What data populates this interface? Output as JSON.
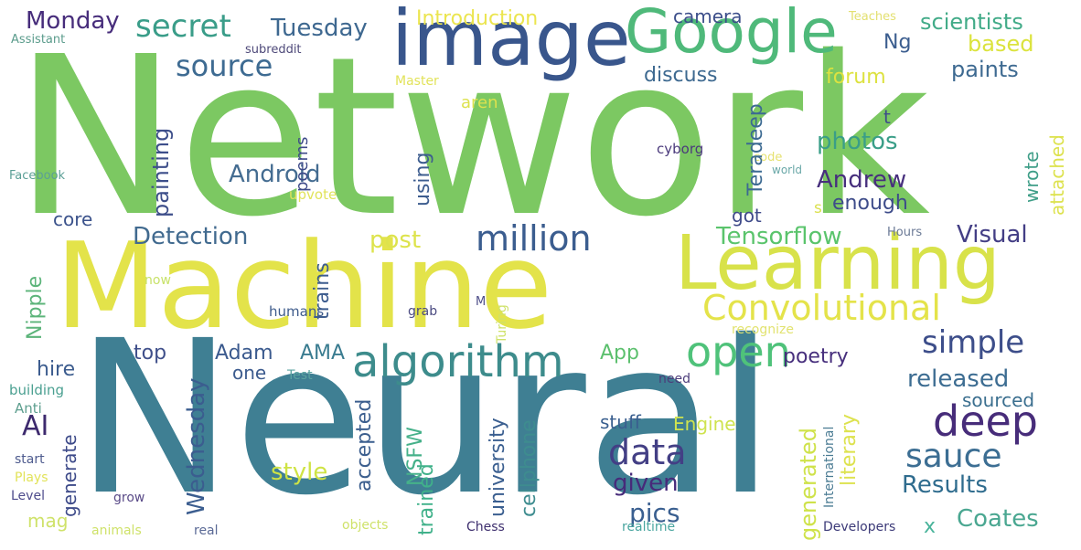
{
  "words": [
    {
      "text": "Network",
      "color": "#7cc862"
    },
    {
      "text": "Neural",
      "color": "#3f7f93"
    },
    {
      "text": "Machine",
      "color": "#e3e34a"
    },
    {
      "text": "Learning",
      "color": "#d8e24a"
    },
    {
      "text": "image",
      "color": "#39568c"
    },
    {
      "text": "Google",
      "color": "#4fb97a"
    },
    {
      "text": "algorithm",
      "color": "#3d8c8c"
    },
    {
      "text": "open",
      "color": "#4fc27a"
    },
    {
      "text": "deep",
      "color": "#472c7a"
    },
    {
      "text": "million",
      "color": "#3b5d8f"
    },
    {
      "text": "Convolutional",
      "color": "#e4e34a"
    },
    {
      "text": "data",
      "color": "#433f85"
    },
    {
      "text": "sauce",
      "color": "#3c6e93"
    },
    {
      "text": "simple",
      "color": "#3d4e8a"
    },
    {
      "text": "secret",
      "color": "#3a9d89"
    },
    {
      "text": "source",
      "color": "#3e6b92"
    },
    {
      "text": "Tensorflow",
      "color": "#5ac46c"
    },
    {
      "text": "Detection",
      "color": "#416a8f"
    },
    {
      "text": "Monday",
      "color": "#472d7b"
    },
    {
      "text": "Tuesday",
      "color": "#3e6890"
    },
    {
      "text": "Android",
      "color": "#446c91"
    },
    {
      "text": "photos",
      "color": "#3a9e88"
    },
    {
      "text": "Andrew",
      "color": "#472f7d"
    },
    {
      "text": "Visual",
      "color": "#433e85"
    },
    {
      "text": "released",
      "color": "#3d6d92"
    },
    {
      "text": "Results",
      "color": "#2f6c8e"
    },
    {
      "text": "Coates",
      "color": "#4aa791"
    },
    {
      "text": "pics",
      "color": "#3a5f90"
    },
    {
      "text": "given",
      "color": "#472a7a"
    },
    {
      "text": "style",
      "color": "#cfe344"
    },
    {
      "text": "scientists",
      "color": "#42ab88"
    },
    {
      "text": "based",
      "color": "#dbe33d"
    },
    {
      "text": "paints",
      "color": "#3e6a91"
    },
    {
      "text": "forum",
      "color": "#dde240"
    },
    {
      "text": "discuss",
      "color": "#3d6990"
    },
    {
      "text": "camera",
      "color": "#3c4e8a"
    },
    {
      "text": "Introduction",
      "color": "#ebe54f"
    },
    {
      "text": "Ng",
      "color": "#3c5e8f"
    },
    {
      "text": "enough",
      "color": "#3e4c8a"
    },
    {
      "text": "got",
      "color": "#3e4a89"
    },
    {
      "text": "post",
      "color": "#dde34c"
    },
    {
      "text": "core",
      "color": "#3b528b"
    },
    {
      "text": "top",
      "color": "#3f4f8a"
    },
    {
      "text": "Adam",
      "color": "#3b5a8e"
    },
    {
      "text": "AMA",
      "color": "#3a7c90"
    },
    {
      "text": "App",
      "color": "#5cc06e"
    },
    {
      "text": "one",
      "color": "#3c5b8e"
    },
    {
      "text": "poetry",
      "color": "#472f7d"
    },
    {
      "text": "hire",
      "color": "#3c5c8e"
    },
    {
      "text": "AI",
      "color": "#3d2a6e"
    },
    {
      "text": "sourced",
      "color": "#3b6f8f"
    },
    {
      "text": "stuff",
      "color": "#3a5f8f"
    },
    {
      "text": "Engine",
      "color": "#cfe34f"
    },
    {
      "text": "mag",
      "color": "#cfe26a"
    },
    {
      "text": "x",
      "color": "#4ab49b"
    },
    {
      "text": "aren",
      "color": "#dde24e"
    },
    {
      "text": "Master",
      "color": "#e2e35a"
    },
    {
      "text": "Teaches",
      "color": "#e3e070"
    },
    {
      "text": "Assistant",
      "color": "#5b9c8c"
    },
    {
      "text": "subreddit",
      "color": "#4f4a7a"
    },
    {
      "text": "Facebook",
      "color": "#5b9f96"
    },
    {
      "text": "cyborg",
      "color": "#4b3a7c"
    },
    {
      "text": "code",
      "color": "#e6e270"
    },
    {
      "text": "world",
      "color": "#6aa8a8"
    },
    {
      "text": "upvote",
      "color": "#e1e35a"
    },
    {
      "text": "Hours",
      "color": "#6b7a96"
    },
    {
      "text": "s",
      "color": "#dbe14e"
    },
    {
      "text": "t",
      "color": "#3e4c89"
    },
    {
      "text": "now",
      "color": "#c8e26a"
    },
    {
      "text": "humans",
      "color": "#3e5b8b"
    },
    {
      "text": "grab",
      "color": "#4a4a80"
    },
    {
      "text": "M",
      "color": "#4d4d88"
    },
    {
      "text": "recognize",
      "color": "#e2e370"
    },
    {
      "text": "Test",
      "color": "#5aa3a0"
    },
    {
      "text": "need",
      "color": "#4c3d7a"
    },
    {
      "text": "building",
      "color": "#4ba091"
    },
    {
      "text": "Anti",
      "color": "#5e9f8f"
    },
    {
      "text": "start",
      "color": "#4e5b8e"
    },
    {
      "text": "Plays",
      "color": "#e2e35a"
    },
    {
      "text": "Level",
      "color": "#4e4c8c"
    },
    {
      "text": "grow",
      "color": "#5a4b88"
    },
    {
      "text": "animals",
      "color": "#cfe26a"
    },
    {
      "text": "real",
      "color": "#5b6a96"
    },
    {
      "text": "objects",
      "color": "#cfe26a"
    },
    {
      "text": "Chess",
      "color": "#3e2f6e"
    },
    {
      "text": "realtime",
      "color": "#4aa6a0"
    },
    {
      "text": "Developers",
      "color": "#3c3a78"
    },
    {
      "text": "Wednesday",
      "color": "#3b5d8f"
    },
    {
      "text": "Nipple",
      "color": "#5cb47a"
    },
    {
      "text": "generate",
      "color": "#3d4a89"
    },
    {
      "text": "accepted",
      "color": "#3b5e8e"
    },
    {
      "text": "NSFW",
      "color": "#46b18a"
    },
    {
      "text": "trained",
      "color": "#40b18a"
    },
    {
      "text": "university",
      "color": "#3b5f90"
    },
    {
      "text": "cellphone",
      "color": "#3e8c8f"
    },
    {
      "text": "generated",
      "color": "#cfe24a"
    },
    {
      "text": "literary",
      "color": "#dde24e"
    },
    {
      "text": "International",
      "color": "#4a7b93"
    },
    {
      "text": "trains",
      "color": "#3d5c8e"
    },
    {
      "text": "Turing",
      "color": "#cfe26a"
    },
    {
      "text": "painting",
      "color": "#3d4e8a"
    },
    {
      "text": "poems",
      "color": "#3e4a89"
    },
    {
      "text": "using",
      "color": "#3d5d8f"
    },
    {
      "text": "Teradeep",
      "color": "#3c6a92"
    },
    {
      "text": "wrote",
      "color": "#3f9e88"
    },
    {
      "text": "attached",
      "color": "#dde24e"
    }
  ]
}
